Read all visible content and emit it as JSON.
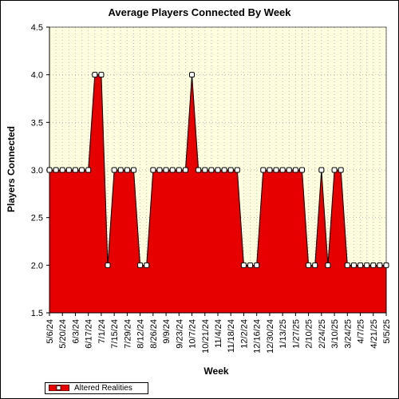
{
  "chart_data": {
    "type": "area",
    "title": "Average Players Connected By Week",
    "xlabel": "Week",
    "ylabel": "Players Connected",
    "ylim": [
      1.5,
      4.5
    ],
    "yticks": [
      "1.5",
      "2.0",
      "2.5",
      "3.0",
      "3.5",
      "4.0",
      "4.5"
    ],
    "grid": true,
    "legend_position": "bottom-left",
    "x": [
      "5/6/24",
      "5/13/24",
      "5/20/24",
      "5/27/24",
      "6/3/24",
      "6/10/24",
      "6/17/24",
      "6/24/24",
      "7/1/24",
      "7/8/24",
      "7/15/24",
      "7/22/24",
      "7/29/24",
      "8/5/24",
      "8/12/24",
      "8/19/24",
      "8/26/24",
      "9/2/24",
      "9/9/24",
      "9/16/24",
      "9/23/24",
      "9/30/24",
      "10/7/24",
      "10/14/24",
      "10/21/24",
      "10/28/24",
      "11/4/24",
      "11/11/24",
      "11/18/24",
      "11/25/24",
      "12/2/24",
      "12/9/24",
      "12/16/24",
      "12/23/24",
      "12/30/24",
      "1/6/25",
      "1/13/25",
      "1/20/25",
      "1/27/25",
      "2/3/25",
      "2/10/25",
      "2/17/25",
      "2/24/25",
      "3/3/25",
      "3/10/25",
      "3/17/25",
      "3/24/25",
      "3/31/25",
      "4/7/25",
      "4/14/25",
      "4/21/25",
      "4/28/25",
      "5/5/25"
    ],
    "xtick_labels": [
      "5/6/24",
      "5/20/24",
      "6/3/24",
      "6/17/24",
      "7/1/24",
      "7/15/24",
      "7/29/24",
      "8/12/24",
      "8/26/24",
      "9/9/24",
      "9/23/24",
      "10/7/24",
      "10/21/24",
      "11/4/24",
      "11/18/24",
      "12/2/24",
      "12/16/24",
      "12/30/24",
      "1/13/25",
      "1/27/25",
      "2/10/25",
      "2/24/25",
      "3/10/25",
      "3/24/25",
      "4/7/25",
      "4/21/25",
      "5/5/25"
    ],
    "series": [
      {
        "name": "Altered Realities",
        "color": "#e60000",
        "values": [
          3,
          3,
          3,
          3,
          3,
          3,
          3,
          4,
          4,
          2,
          3,
          3,
          3,
          3,
          2,
          2,
          3,
          3,
          3,
          3,
          3,
          3,
          4,
          3,
          3,
          3,
          3,
          3,
          3,
          3,
          2,
          2,
          2,
          3,
          3,
          3,
          3,
          3,
          3,
          3,
          2,
          2,
          3,
          2,
          3,
          3,
          2,
          2,
          2,
          2,
          2,
          2,
          2
        ]
      }
    ]
  },
  "colors": {
    "plot_background": "#ffffe0",
    "grid": "#b8b8b8",
    "area_fill": "#e60000",
    "marker_fill": "#ffffff"
  }
}
